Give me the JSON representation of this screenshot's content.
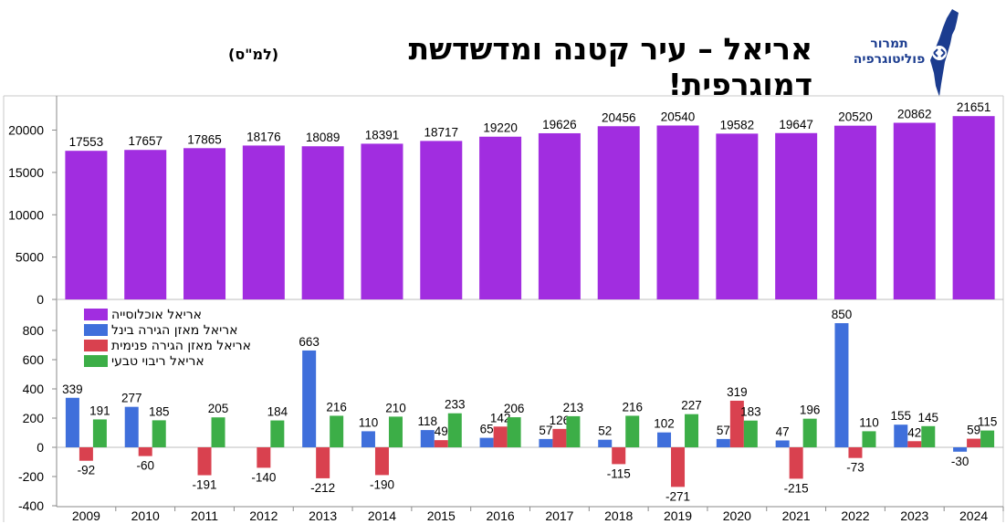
{
  "header": {
    "title": "אריאל – עיר קטנה ומדשדשת דמוגרפית!",
    "source": "(למ\"ס)",
    "logo_line1": "תמרור",
    "logo_line2": "פוליטוגרפיה"
  },
  "colors": {
    "population": "#a12de0",
    "intl_migration": "#3f6fdb",
    "internal_migration": "#d9414f",
    "natural_growth": "#3cae47"
  },
  "chart_data": [
    {
      "type": "bar",
      "categories": [
        "2009",
        "2010",
        "2011",
        "2012",
        "2013",
        "2014",
        "2015",
        "2016",
        "2017",
        "2018",
        "2019",
        "2020",
        "2021",
        "2022",
        "2023",
        "2024"
      ],
      "series": [
        {
          "name": "אריאל אוכלוסייה",
          "values": [
            17553,
            17657,
            17865,
            18176,
            18089,
            18391,
            18717,
            19220,
            19626,
            20456,
            20540,
            19582,
            19647,
            20520,
            20862,
            21651
          ]
        }
      ],
      "ylim": [
        0,
        23000
      ],
      "yticks": [
        0,
        5000,
        10000,
        15000,
        20000
      ]
    },
    {
      "type": "bar",
      "categories": [
        "2009",
        "2010",
        "2011",
        "2012",
        "2013",
        "2014",
        "2015",
        "2016",
        "2017",
        "2018",
        "2019",
        "2020",
        "2021",
        "2022",
        "2023",
        "2024"
      ],
      "series": [
        {
          "name": "אריאל מאזן הגירה בינל",
          "values": [
            339,
            277,
            null,
            null,
            663,
            110,
            118,
            65,
            57,
            52,
            102,
            57,
            47,
            850,
            155,
            -30
          ]
        },
        {
          "name": "אריאל מאזן הגירה פנימית",
          "values": [
            -92,
            -60,
            -191,
            -140,
            -212,
            -190,
            49,
            142,
            126,
            -115,
            -271,
            319,
            -215,
            -73,
            42,
            59
          ]
        },
        {
          "name": "אריאל ריבוי טבעי",
          "values": [
            191,
            185,
            205,
            184,
            216,
            210,
            233,
            206,
            213,
            216,
            227,
            183,
            196,
            110,
            145,
            115
          ]
        }
      ],
      "ylim": [
        -400,
        900
      ],
      "yticks": [
        -400,
        -200,
        0,
        200,
        400,
        600,
        800
      ],
      "legend": "top-left"
    }
  ]
}
